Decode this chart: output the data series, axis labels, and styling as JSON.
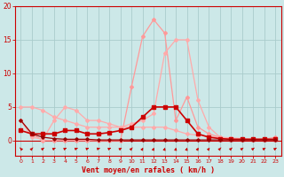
{
  "xlabel": "Vent moyen/en rafales ( km/h )",
  "ylim": [
    0,
    20
  ],
  "xlim": [
    -0.5,
    23.5
  ],
  "background_color": "#cce8e8",
  "grid_color": "#aacccc",
  "series": [
    {
      "x": [
        0,
        1,
        2,
        3,
        4,
        5,
        6,
        7,
        8,
        9,
        10,
        11,
        12,
        13,
        14,
        15,
        16,
        17,
        18,
        19,
        20,
        21,
        22,
        23
      ],
      "y": [
        3,
        1,
        0,
        0,
        0,
        0,
        0,
        0,
        0,
        0,
        8,
        15.5,
        18,
        16,
        3,
        6.5,
        2,
        1,
        0.5,
        0.3,
        0.2,
        0.2,
        0.2,
        0.5
      ],
      "color": "#ff9999",
      "linewidth": 0.9,
      "marker": "D",
      "markersize": 2.0,
      "linestyle": "-"
    },
    {
      "x": [
        0,
        1,
        2,
        3,
        4,
        5,
        6,
        7,
        8,
        9,
        10,
        11,
        12,
        13,
        14,
        15,
        16,
        17,
        18,
        19,
        20,
        21,
        22,
        23
      ],
      "y": [
        3,
        0.5,
        0.2,
        3,
        5,
        4.5,
        3,
        3,
        2.5,
        2,
        2.5,
        3,
        4,
        13,
        15,
        15,
        6,
        2,
        0.5,
        0.2,
        0.1,
        0.1,
        0.1,
        0.2
      ],
      "color": "#ffaaaa",
      "linewidth": 0.9,
      "marker": "D",
      "markersize": 2.0,
      "linestyle": "-"
    },
    {
      "x": [
        0,
        1,
        2,
        3,
        4,
        5,
        6,
        7,
        8,
        9,
        10,
        11,
        12,
        13,
        14,
        15,
        16,
        17,
        18,
        19,
        20,
        21,
        22,
        23
      ],
      "y": [
        5,
        5,
        4.5,
        3.5,
        3,
        2.5,
        2,
        2,
        2,
        2,
        2,
        2,
        2,
        2,
        1.5,
        1,
        0.8,
        0.6,
        0.5,
        0.4,
        0.3,
        0.2,
        0.2,
        0.1
      ],
      "color": "#ffaaaa",
      "linewidth": 0.9,
      "marker": "D",
      "markersize": 2.0,
      "linestyle": "-"
    },
    {
      "x": [
        0,
        1,
        2,
        3,
        4,
        5,
        6,
        7,
        8,
        9,
        10,
        11,
        12,
        13,
        14,
        15,
        16,
        17,
        18,
        19,
        20,
        21,
        22,
        23
      ],
      "y": [
        1.5,
        1,
        1,
        1,
        1.5,
        1.5,
        1,
        1,
        1.2,
        1.5,
        2,
        3.5,
        5,
        5,
        5,
        3,
        1,
        0.5,
        0.3,
        0.2,
        0.2,
        0.2,
        0.2,
        0.2
      ],
      "color": "#cc0000",
      "linewidth": 1.2,
      "marker": "s",
      "markersize": 2.5,
      "linestyle": "-"
    },
    {
      "x": [
        0,
        1,
        2,
        3,
        4,
        5,
        6,
        7,
        8,
        9,
        10,
        11,
        12,
        13,
        14,
        15,
        16,
        17,
        18,
        19,
        20,
        21,
        22,
        23
      ],
      "y": [
        3,
        1,
        0.5,
        0.3,
        0.2,
        0.2,
        0.2,
        0.1,
        0.1,
        0.1,
        0.1,
        0.1,
        0.1,
        0.1,
        0.1,
        0.1,
        0.1,
        0.1,
        0.1,
        0.1,
        0.1,
        0.1,
        0.1,
        0.1
      ],
      "color": "#990000",
      "linewidth": 0.9,
      "marker": "D",
      "markersize": 1.8,
      "linestyle": "-"
    }
  ],
  "yticks": [
    0,
    5,
    10,
    15,
    20
  ],
  "xticks": [
    0,
    1,
    2,
    3,
    4,
    5,
    6,
    7,
    8,
    9,
    10,
    11,
    12,
    13,
    14,
    15,
    16,
    17,
    18,
    19,
    20,
    21,
    22,
    23
  ],
  "xlabel_color": "#cc0000",
  "tick_color": "#cc0000",
  "arrow_color": "#cc0000",
  "wind_x": [
    0,
    1,
    2,
    3,
    4,
    5,
    6,
    7,
    8,
    9,
    10,
    11,
    12,
    13,
    14,
    15,
    16,
    17,
    18,
    19,
    20,
    21,
    22,
    23
  ],
  "wind_angles_deg": [
    120,
    60,
    50,
    40,
    35,
    30,
    25,
    20,
    30,
    45,
    60,
    70,
    75,
    80,
    85,
    80,
    70,
    65,
    60,
    55,
    50,
    50,
    45,
    45
  ]
}
